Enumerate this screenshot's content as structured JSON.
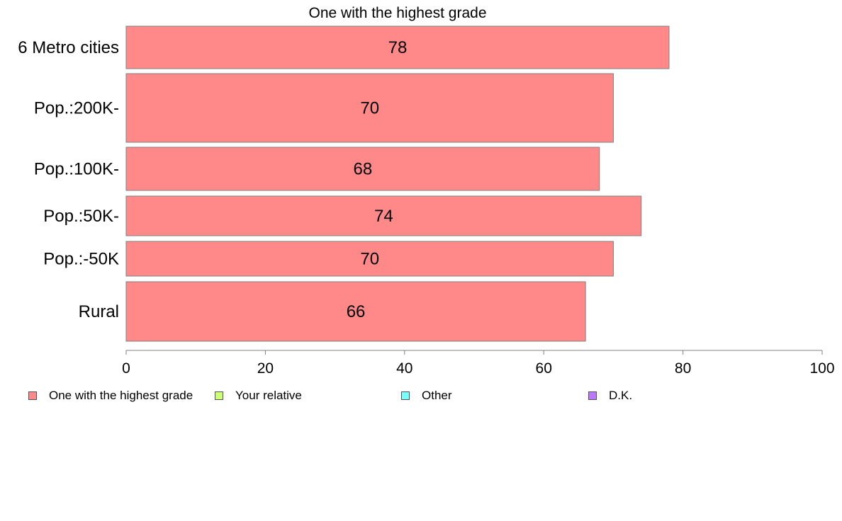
{
  "chart_data": {
    "type": "bar",
    "orientation": "horizontal",
    "title": "One with the highest grade",
    "categories": [
      "6 Metro cities",
      "Pop.:200K-",
      "Pop.:100K-",
      "Pop.:50K-",
      "Pop.:-50K",
      "Rural"
    ],
    "series": [
      {
        "name": "One with the highest grade",
        "values": [
          78,
          70,
          68,
          74,
          70,
          66
        ],
        "color": "#ff8888"
      }
    ],
    "xlim": [
      0,
      100
    ],
    "xticks": [
      0,
      20,
      40,
      60,
      80,
      100
    ],
    "xlabel": "",
    "ylabel": "",
    "grid": false,
    "data_labels": true,
    "legend": {
      "placement": "bottom",
      "entries": [
        {
          "label": "One with the highest grade",
          "color": "#ff8888"
        },
        {
          "label": "Your relative",
          "color": "#ccff77"
        },
        {
          "label": "Other",
          "color": "#77ffff"
        },
        {
          "label": "D.K.",
          "color": "#bb77ff"
        }
      ]
    }
  }
}
